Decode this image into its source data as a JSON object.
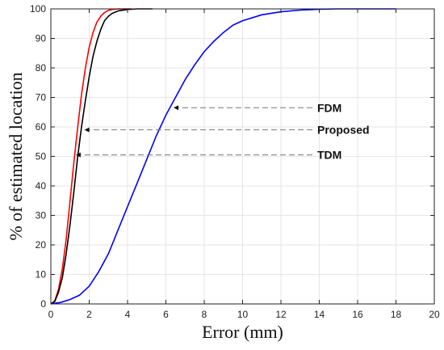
{
  "chart_data": {
    "type": "line",
    "title": "",
    "xlabel": "Error (mm)",
    "ylabel": "% of estimated location",
    "xlim": [
      0,
      20
    ],
    "ylim": [
      0,
      100
    ],
    "xticks": [
      0,
      2,
      4,
      6,
      8,
      10,
      12,
      14,
      16,
      18,
      20
    ],
    "yticks": [
      0,
      10,
      20,
      30,
      40,
      50,
      60,
      70,
      80,
      90,
      100
    ],
    "grid": true,
    "series": [
      {
        "color": "#ff0000",
        "x": [
          0,
          0.2,
          0.4,
          0.6,
          0.8,
          1.0,
          1.2,
          1.4,
          1.6,
          1.8,
          2.0,
          2.2,
          2.4,
          2.6,
          2.8,
          3.0,
          3.2,
          3.5,
          4.0,
          4.2
        ],
        "y": [
          0,
          1,
          5,
          12,
          22,
          35,
          48,
          60,
          71,
          80,
          87,
          92,
          95.5,
          97.5,
          98.8,
          99.5,
          99.8,
          100,
          100,
          100
        ]
      },
      {
        "color": "#000000",
        "x": [
          0,
          0.2,
          0.4,
          0.6,
          0.8,
          1.0,
          1.2,
          1.4,
          1.6,
          1.8,
          2.0,
          2.2,
          2.4,
          2.6,
          2.8,
          3.0,
          3.2,
          3.5,
          4.0,
          4.5,
          5.3
        ],
        "y": [
          0,
          0.8,
          4,
          9,
          17,
          27,
          38,
          50,
          60,
          69,
          77,
          84,
          89,
          93,
          96,
          97.5,
          98.5,
          99.3,
          99.8,
          100,
          100
        ]
      },
      {
        "color": "#0000ff",
        "x": [
          0,
          0.5,
          1.0,
          1.5,
          2.0,
          2.5,
          3.0,
          3.5,
          4.0,
          4.5,
          5.0,
          5.5,
          6.0,
          6.5,
          7.0,
          7.5,
          8.0,
          8.5,
          9.0,
          9.5,
          10.0,
          11.0,
          12.0,
          13.0,
          14.0,
          15.0,
          16.0,
          17.0,
          18.0
        ],
        "y": [
          0,
          0.5,
          1.5,
          3,
          6,
          11,
          17,
          25,
          33,
          41,
          49,
          57,
          64,
          70,
          76,
          81,
          85.5,
          89,
          92,
          94.5,
          96,
          98,
          99,
          99.6,
          99.9,
          100,
          100,
          100,
          100
        ]
      }
    ],
    "annotations": [
      {
        "text": "FDM",
        "color": "#0000ff",
        "point": [
          6.4,
          66.5
        ]
      },
      {
        "text": "Proposed",
        "color": "#000000",
        "point": [
          1.75,
          59
        ]
      },
      {
        "text": "TDM",
        "color": "#ff0000",
        "point": [
          1.3,
          50.5
        ]
      }
    ]
  }
}
